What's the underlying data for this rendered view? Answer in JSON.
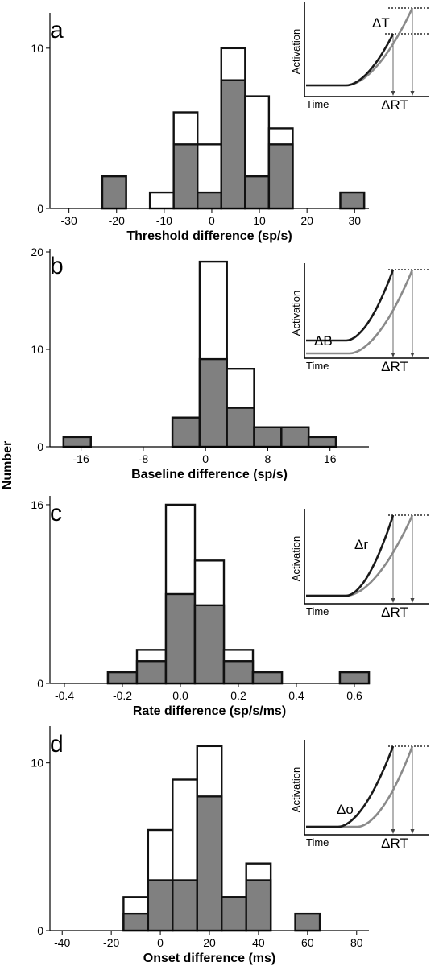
{
  "y_label": "Number",
  "inset_labels": {
    "activation": "Activation",
    "time": "Time",
    "rt": "ΔRT"
  },
  "colors": {
    "shaded": "#808080",
    "open": "#ffffff",
    "edge": "#111111",
    "dark_trace": "#1a1a1a",
    "light_trace": "#8a8a8a"
  },
  "chart_data": [
    {
      "type": "bar",
      "panel": "a",
      "xlabel": "Threshold difference (sp/s)",
      "ylabel": "Number",
      "xlim": [
        -34,
        33
      ],
      "ylim": [
        0,
        12
      ],
      "xticks": [
        -30,
        -20,
        -10,
        0,
        10,
        20,
        30
      ],
      "xtick_labels": [
        "-30",
        "-20",
        "-10",
        "0",
        "10",
        "20",
        "30"
      ],
      "yticks": [
        0,
        10
      ],
      "bin_width": 5,
      "bin_starts": [
        -23,
        -13,
        -8,
        -3,
        2,
        7,
        12,
        27
      ],
      "series": [
        {
          "name": "total",
          "values": [
            2,
            1,
            6,
            4,
            10,
            7,
            5,
            1
          ]
        },
        {
          "name": "shaded",
          "values": [
            2,
            0,
            4,
            1,
            8,
            2,
            4,
            1
          ]
        }
      ],
      "inset_delta": "ΔT",
      "inset_type": "threshold"
    },
    {
      "type": "bar",
      "panel": "b",
      "xlabel": "Baseline difference (sp/s)",
      "ylabel": "Number",
      "xlim": [
        -20,
        21
      ],
      "ylim": [
        0,
        20
      ],
      "xticks": [
        -16,
        -8,
        0,
        8,
        16
      ],
      "xtick_labels": [
        "-16",
        "-8",
        "0",
        "8",
        "16"
      ],
      "yticks": [
        0,
        10,
        20
      ],
      "bin_width": 3.5,
      "bin_starts": [
        -18.25,
        -4.25,
        -0.75,
        2.75,
        6.25,
        9.75,
        13.25
      ],
      "series": [
        {
          "name": "total",
          "values": [
            1,
            3,
            19,
            8,
            2,
            2,
            1
          ]
        },
        {
          "name": "shaded",
          "values": [
            1,
            3,
            9,
            4,
            2,
            2,
            1
          ]
        }
      ],
      "inset_delta": "ΔB",
      "inset_type": "baseline"
    },
    {
      "type": "bar",
      "panel": "c",
      "xlabel": "Rate difference (sp/s/ms)",
      "ylabel": "Number",
      "xlim": [
        -0.45,
        0.65
      ],
      "ylim": [
        0,
        16.5
      ],
      "xticks": [
        -0.4,
        -0.2,
        0.0,
        0.2,
        0.4,
        0.6
      ],
      "xtick_labels": [
        "-0.4",
        "-0.2",
        "0.0",
        "0.2",
        "0.4",
        "0.6"
      ],
      "yticks": [
        0,
        16
      ],
      "bin_width": 0.1,
      "bin_starts": [
        -0.25,
        -0.15,
        -0.05,
        0.05,
        0.15,
        0.25,
        0.55
      ],
      "series": [
        {
          "name": "total",
          "values": [
            1,
            3,
            16,
            11,
            3,
            1,
            1
          ]
        },
        {
          "name": "shaded",
          "values": [
            1,
            2,
            8,
            7,
            2,
            1,
            1
          ]
        }
      ],
      "inset_delta": "Δr",
      "inset_type": "rate"
    },
    {
      "type": "bar",
      "panel": "d",
      "xlabel": "Onset difference (ms)",
      "ylabel": "Number",
      "xlim": [
        -45,
        85
      ],
      "ylim": [
        0,
        12
      ],
      "xticks": [
        -40,
        -20,
        0,
        20,
        40,
        60,
        80
      ],
      "xtick_labels": [
        "-40",
        "-20",
        "0",
        "20",
        "40",
        "60",
        "80"
      ],
      "yticks": [
        0,
        10
      ],
      "bin_width": 10,
      "bin_starts": [
        -15,
        -5,
        5,
        15,
        25,
        35,
        55
      ],
      "series": [
        {
          "name": "total",
          "values": [
            2,
            6,
            9,
            11,
            2,
            4,
            1
          ]
        },
        {
          "name": "shaded",
          "values": [
            1,
            3,
            3,
            8,
            2,
            3,
            1
          ]
        }
      ],
      "inset_delta": "Δo",
      "inset_type": "onset"
    }
  ]
}
